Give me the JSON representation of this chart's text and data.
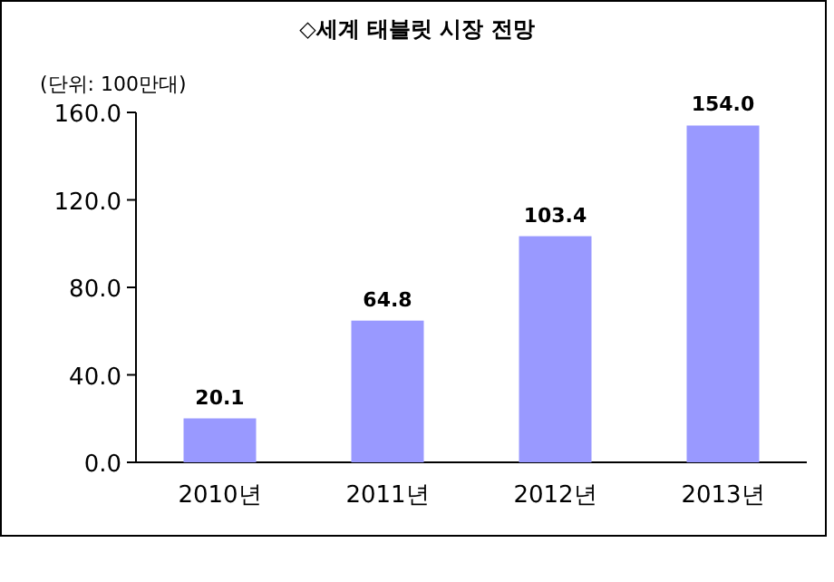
{
  "chart_data": {
    "type": "bar",
    "title": "◇세계 태블릿 시장 전망",
    "ylabel": "(단위: 100만대)",
    "categories": [
      "2010년",
      "2011년",
      "2012년",
      "2013년"
    ],
    "values": [
      20.1,
      64.8,
      103.4,
      154.0
    ],
    "value_labels": [
      "20.1",
      "64.8",
      "103.4",
      "154.0"
    ],
    "color": "#9999ff",
    "ylim": [
      0,
      160
    ],
    "yticks": [
      {
        "value": 0,
        "label": "0.0"
      },
      {
        "value": 40,
        "label": "40.0"
      },
      {
        "value": 80,
        "label": "80.0"
      },
      {
        "value": 120,
        "label": "120.0"
      },
      {
        "value": 160,
        "label": "160.0"
      }
    ]
  }
}
